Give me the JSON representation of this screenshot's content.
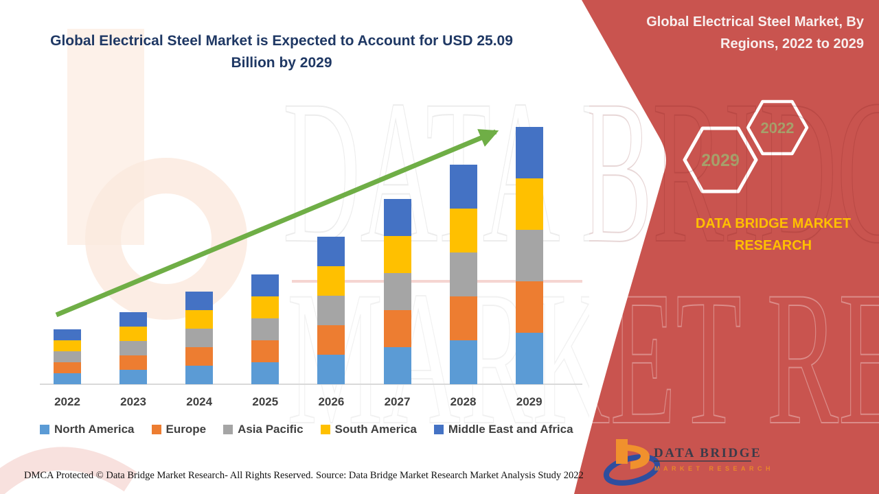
{
  "header": {
    "chart_title": "Global Electrical Steel Market is Expected to Account for USD 25.09 Billion by 2029"
  },
  "right_panel": {
    "title": "Global Electrical Steel Market, By Regions, 2022 to 2029",
    "background_color": "#C9544F",
    "hexagons": [
      {
        "label": "2029"
      },
      {
        "label": "2022"
      }
    ],
    "hex_label_color": "#A6A06B",
    "brand_text": "DATA BRIDGE MARKET RESEARCH",
    "brand_text_color": "#FFC000",
    "logo": {
      "name": "DATA BRIDGE",
      "tagline": "MARKET RESEARCH",
      "name_color": "#3C3B49",
      "tagline_color": "#E8872B",
      "mark_orange": "#F0912D",
      "mark_blue": "#2F4E9E"
    }
  },
  "watermark": {
    "line1": "DATA BRIDGE",
    "line2": "MARKET RESEARCH"
  },
  "chart_data": {
    "type": "bar",
    "stacked": true,
    "title": "Global Electrical Steel Market is Expected to Account for USD 25.09 Billion by 2029",
    "unit": "USD Billion",
    "categories": [
      "2022",
      "2023",
      "2024",
      "2025",
      "2026",
      "2027",
      "2028",
      "2029"
    ],
    "series": [
      {
        "name": "North America",
        "color": "#5B9BD5",
        "values": [
          1.06,
          1.43,
          1.8,
          2.16,
          2.87,
          3.57,
          4.29,
          5.02
        ]
      },
      {
        "name": "Europe",
        "color": "#ED7D31",
        "values": [
          1.06,
          1.43,
          1.8,
          2.16,
          2.87,
          3.57,
          4.29,
          5.02
        ]
      },
      {
        "name": "Asia Pacific",
        "color": "#A5A5A5",
        "values": [
          1.06,
          1.43,
          1.8,
          2.16,
          2.87,
          3.57,
          4.29,
          5.02
        ]
      },
      {
        "name": "South America",
        "color": "#FFC000",
        "values": [
          1.06,
          1.43,
          1.8,
          2.16,
          2.87,
          3.57,
          4.29,
          5.02
        ]
      },
      {
        "name": "Middle East and Africa",
        "color": "#4472C4",
        "values": [
          1.06,
          1.43,
          1.8,
          2.16,
          2.87,
          3.57,
          4.29,
          5.02
        ]
      }
    ],
    "totals": [
      5.3,
      7.15,
      9.0,
      10.8,
      14.35,
      17.85,
      21.45,
      25.09
    ],
    "ylim": [
      0,
      26
    ],
    "y_axis_shown": false,
    "gridlines": false,
    "legend_position": "bottom",
    "trend_arrow_color": "#6FAE46"
  },
  "footer": {
    "left": "DMCA Protected © Data Bridge Market Research- All Rights Reserved.",
    "right": "Source: Data Bridge Market Research Market Analysis Study 2022"
  }
}
